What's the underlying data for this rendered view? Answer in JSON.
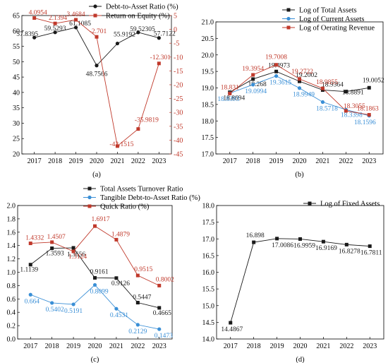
{
  "colors": {
    "black": "#1a1a1a",
    "blue": "#3a8fd6",
    "red": "#c0392b",
    "axis": "#000000"
  },
  "chart_data": [
    {
      "id": "a",
      "type": "line",
      "caption": "(a)",
      "x": [
        "2017",
        "2018",
        "2019",
        "2020",
        "2021",
        "2022",
        "2023"
      ],
      "ylim_left": [
        20,
        65
      ],
      "yticks_left": [
        20,
        25,
        30,
        35,
        40,
        45,
        50,
        55,
        60,
        65
      ],
      "ylim_right": [
        -45,
        5
      ],
      "yticks_right": [
        -45,
        -40,
        -35,
        -30,
        -25,
        -20,
        -15,
        -10,
        -5,
        0,
        5
      ],
      "legend_position": "top-right",
      "series": [
        {
          "name": "Debt-to-Asset Ratio (%)",
          "axis": "left",
          "color": "#1a1a1a",
          "values": [
            57.8395,
            59.5293,
            61.1085,
            48.7566,
            55.9192,
            59.52305,
            57.7122
          ],
          "labels": [
            "57.8395",
            "59.5293",
            "61.1085",
            "48.7566",
            "55.9192",
            "59.52305",
            "57.7122"
          ]
        },
        {
          "name": "Return on Equity (%)",
          "axis": "right",
          "color": "#c0392b",
          "values": [
            4.0954,
            2.1394,
            3.4684,
            -2.701,
            -42.1515,
            -35.9819,
            -12.301
          ],
          "labels": [
            "4.0954",
            "2.1394",
            "3.4684",
            "-2.701",
            "-42.1515",
            "-35.9819",
            "-12.301"
          ]
        }
      ]
    },
    {
      "id": "b",
      "type": "line",
      "caption": "(b)",
      "x": [
        "2017",
        "2018",
        "2019",
        "2020",
        "2021",
        "2022",
        "2023"
      ],
      "ylim": [
        17.0,
        21.0
      ],
      "yticks": [
        "17.0",
        "17.5",
        "18.0",
        "18.5",
        "19.0",
        "19.5",
        "20.0",
        "20.5",
        "21.0"
      ],
      "legend_position": "top-right",
      "series": [
        {
          "name": "Log of Total Assets",
          "color": "#1a1a1a",
          "values": [
            18.8694,
            19.268,
            19.4973,
            19.2002,
            18.9364,
            18.8891,
            19.0052
          ],
          "labels": [
            "18.8694",
            "19.268",
            "19.4973",
            "19.2002",
            "18.9364",
            "18.8891",
            "19.0052"
          ]
        },
        {
          "name": "Log of Current Assets",
          "color": "#3a8fd6",
          "values": [
            18.8393,
            19.0994,
            19.3615,
            18.9949,
            18.5718,
            18.3398,
            18.1596
          ],
          "labels": [
            "18.8393",
            "19.0994",
            "19.3615",
            "18.9949",
            "18.5718",
            "18.3398",
            "18.1596"
          ]
        },
        {
          "name": "Log of Oerating Revenue",
          "color": "#c0392b",
          "values": [
            18.831,
            19.3954,
            19.7008,
            19.2722,
            18.9855,
            18.3055,
            18.1863
          ],
          "labels": [
            "18.831",
            "19.3954",
            "19.7008",
            "19.2722",
            "18.9855",
            "18.3055",
            "18.1863"
          ]
        }
      ]
    },
    {
      "id": "c",
      "type": "line",
      "caption": "(c)",
      "x": [
        "2017",
        "2018",
        "2019",
        "2020",
        "2021",
        "2022",
        "2023"
      ],
      "ylim": [
        0.0,
        2.0
      ],
      "yticks": [
        "0.0",
        "0.2",
        "0.4",
        "0.6",
        "0.8",
        "1.0",
        "1.2",
        "1.4",
        "1.6",
        "1.8",
        "2.0"
      ],
      "legend_position": "top-right",
      "series": [
        {
          "name": "Total Assets Turnover Ratio",
          "color": "#1a1a1a",
          "values": [
            1.1139,
            1.3593,
            1.3656,
            0.9161,
            0.9126,
            0.5447,
            0.4665
          ],
          "labels": [
            "1.1139",
            "1.3593",
            "1.3656",
            "0.9161",
            "0.9126",
            "0.5447",
            "0.4665"
          ]
        },
        {
          "name": "Tangible Debt-to-Asset Ratio (%)",
          "color": "#3a8fd6",
          "values": [
            0.664,
            0.5402,
            0.5191,
            0.8099,
            0.4531,
            0.2129,
            0.1473
          ],
          "labels": [
            "0.664",
            "0.5402",
            "0.5191",
            "0.8099",
            "0.4531",
            "0.2129",
            "0.1473"
          ]
        },
        {
          "name": "Quick Ratio (%)",
          "color": "#c0392b",
          "values": [
            1.4332,
            1.4507,
            1.3124,
            1.6917,
            1.4879,
            0.9515,
            0.8002
          ],
          "labels": [
            "1.4332",
            "1.4507",
            "1.3124",
            "1.6917",
            "1.4879",
            "0.9515",
            "0.8002"
          ]
        }
      ]
    },
    {
      "id": "d",
      "type": "line",
      "caption": "(d)",
      "x": [
        "2017",
        "2018",
        "2019",
        "2020",
        "2021",
        "2022",
        "2023"
      ],
      "ylim": [
        14.0,
        18.0
      ],
      "yticks": [
        "14.0",
        "14.5",
        "15.0",
        "15.5",
        "16.0",
        "16.5",
        "17.0",
        "17.5",
        "18.0"
      ],
      "legend_position": "top-right",
      "series": [
        {
          "name": "Log of Fixed Assets",
          "color": "#1a1a1a",
          "values": [
            14.4867,
            16.898,
            17.0086,
            16.9959,
            16.9169,
            16.8278,
            16.7811
          ],
          "labels": [
            "14.4867",
            "16.898",
            "17.0086",
            "16.9959",
            "16.9169",
            "16.8278",
            "16.7811"
          ]
        }
      ]
    }
  ]
}
